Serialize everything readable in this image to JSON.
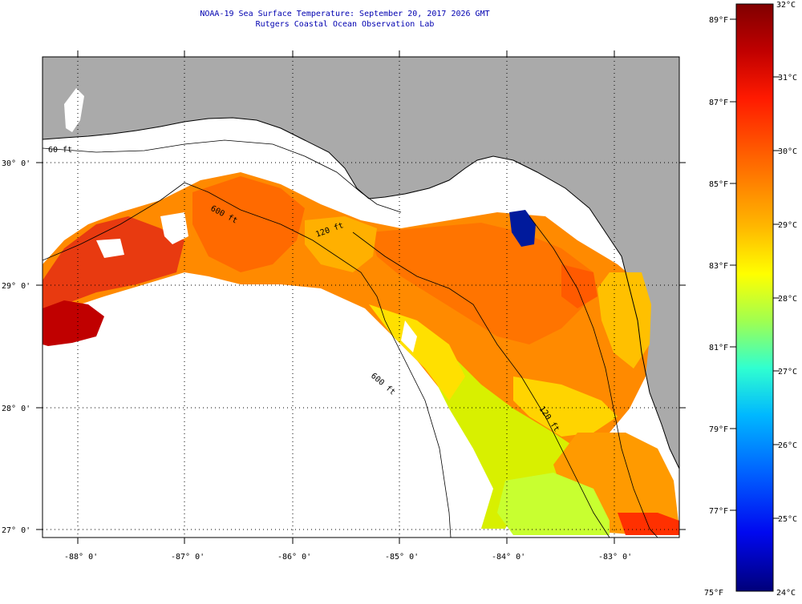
{
  "title": {
    "line1": "NOAA-19 Sea Surface Temperature:  September 20, 2017 2026 GMT",
    "line2": "Rutgers Coastal Ocean Observation Lab"
  },
  "map": {
    "lon_labels": [
      "-88° 0'",
      "-87° 0'",
      "-86° 0'",
      "-85° 0'",
      "-84° 0'",
      "-83° 0'"
    ],
    "lat_labels": [
      "30° 0'",
      "29° 0'",
      "28° 0'",
      "27° 0'"
    ],
    "contour_labels": [
      "60 ft",
      "600 ft",
      "120 ft",
      "600 ft",
      "120 ft"
    ],
    "colors": {
      "land": "#aaaaaa",
      "coast": "#000000",
      "frame": "#000000",
      "grid": "#000000"
    }
  },
  "colorbar": {
    "celsius_labels": [
      "32°C",
      "31°C",
      "30°C",
      "29°C",
      "28°C",
      "27°C",
      "26°C",
      "25°C",
      "24°C"
    ],
    "fahrenheit_labels": [
      "89°F",
      "87°F",
      "85°F",
      "83°F",
      "81°F",
      "79°F",
      "77°F",
      "75°F"
    ],
    "colors": [
      "#800000",
      "#d40000",
      "#ff2000",
      "#ff7a00",
      "#ffd000",
      "#ffff00",
      "#a8ff50",
      "#40ffc0",
      "#00c8ff",
      "#0070ff",
      "#0010ff",
      "#00008c"
    ]
  }
}
